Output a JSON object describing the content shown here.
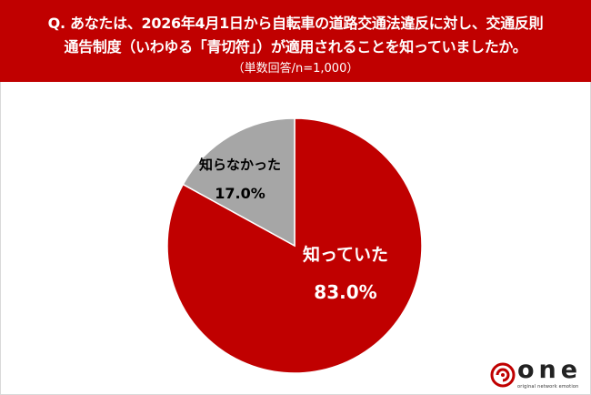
{
  "header": {
    "question_line1": "Q. あなたは、2026年4月1日から自転車の道路交通法違反に対し、交通反則",
    "question_line2": "通告制度（いわゆる「青切符」）が適用されることを知っていましたか。",
    "subtitle": "（単数回答/n=1,000）"
  },
  "chart_data": {
    "type": "pie",
    "title": "",
    "slices": [
      {
        "label": "知っていた",
        "value": 83.0,
        "value_label": "83.0%",
        "color": "#c00000",
        "text_color": "#ffffff"
      },
      {
        "label": "知らなかった",
        "value": 17.0,
        "value_label": "17.0%",
        "color": "#a6a6a6",
        "text_color": "#000000"
      }
    ],
    "start_angle_deg": 0,
    "direction": "clockwise",
    "legend": "none",
    "data_labels": "inside"
  },
  "colors": {
    "banner": "#c00000",
    "accent": "#c00000",
    "gray": "#a6a6a6"
  },
  "logo": {
    "word": "one",
    "tagline": "original network emotion"
  }
}
